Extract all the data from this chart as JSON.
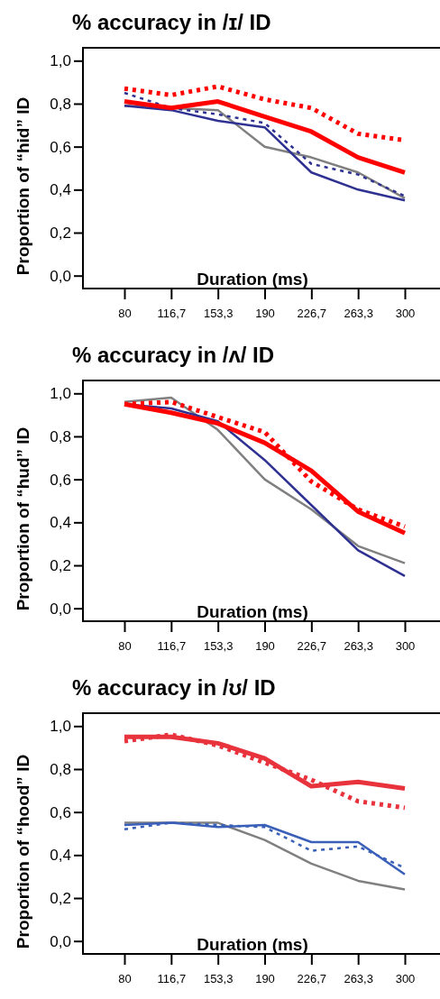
{
  "chart_data": [
    {
      "type": "line",
      "title": "% accuracy in /ɪ/ ID",
      "xlabel": "Duration (ms)",
      "ylabel": "Proportion of “hid” ID",
      "categories": [
        "80",
        "116,7",
        "153,3",
        "190",
        "226,7",
        "263,3",
        "300"
      ],
      "ylim": [
        -0.06,
        1.06
      ],
      "yticks": [
        {
          "value": 0,
          "label": "0,0"
        },
        {
          "value": 0.2,
          "label": "0,2"
        },
        {
          "value": 0.4,
          "label": "0,4"
        },
        {
          "value": 0.6,
          "label": "0,6"
        },
        {
          "value": 0.8,
          "label": "0,8"
        },
        {
          "value": 1,
          "label": "1,0"
        }
      ],
      "grid": false,
      "series": [
        {
          "color": "#ff0000",
          "line_style": "solid",
          "values": [
            0.81,
            0.78,
            0.81,
            0.74,
            0.67,
            0.55,
            0.48
          ]
        },
        {
          "color": "#ff0000",
          "line_style": "dotted",
          "values": [
            0.87,
            0.84,
            0.88,
            0.82,
            0.78,
            0.66,
            0.63
          ]
        },
        {
          "color": "#2e3192",
          "line_style": "solid",
          "values": [
            0.79,
            0.77,
            0.72,
            0.69,
            0.48,
            0.4,
            0.35
          ]
        },
        {
          "color": "#2e3192",
          "line_style": "dotted",
          "values": [
            0.85,
            0.78,
            0.75,
            0.71,
            0.52,
            0.47,
            0.37
          ]
        },
        {
          "color": "#808080",
          "line_style": "solid",
          "values": [
            0.79,
            0.78,
            0.77,
            0.6,
            0.55,
            0.48,
            0.36
          ]
        }
      ]
    },
    {
      "type": "line",
      "title": "% accuracy in /ʌ/ ID",
      "xlabel": "Duration (ms)",
      "ylabel": "Proportion of “hud” ID",
      "categories": [
        "80",
        "116,7",
        "153,3",
        "190",
        "226,7",
        "263,3",
        "300"
      ],
      "ylim": [
        -0.06,
        1.06
      ],
      "yticks": [
        {
          "value": 0,
          "label": "0,0"
        },
        {
          "value": 0.2,
          "label": "0,2"
        },
        {
          "value": 0.4,
          "label": "0,4"
        },
        {
          "value": 0.6,
          "label": "0,6"
        },
        {
          "value": 0.8,
          "label": "0,8"
        },
        {
          "value": 1,
          "label": "1,0"
        }
      ],
      "grid": false,
      "series": [
        {
          "color": "#ff0000",
          "line_style": "solid",
          "values": [
            0.95,
            0.91,
            0.86,
            0.77,
            0.64,
            0.45,
            0.35
          ]
        },
        {
          "color": "#ff0000",
          "line_style": "dotted",
          "values": [
            0.95,
            0.96,
            0.89,
            0.82,
            0.59,
            0.46,
            0.38
          ]
        },
        {
          "color": "#2e3192",
          "line_style": "solid",
          "values": [
            0.95,
            0.93,
            0.87,
            0.69,
            0.48,
            0.27,
            0.15
          ]
        },
        {
          "color": "#808080",
          "line_style": "solid",
          "values": [
            0.96,
            0.98,
            0.83,
            0.6,
            0.46,
            0.29,
            0.21
          ]
        }
      ]
    },
    {
      "type": "line",
      "title": "% accuracy in /ʊ/ ID",
      "xlabel": "Duration (ms)",
      "ylabel": "Proportion of “hood” ID",
      "categories": [
        "80",
        "116,7",
        "153,3",
        "190",
        "226,7",
        "263,3",
        "300"
      ],
      "ylim": [
        -0.06,
        1.06
      ],
      "yticks": [
        {
          "value": 0,
          "label": "0,0"
        },
        {
          "value": 0.2,
          "label": "0,2"
        },
        {
          "value": 0.4,
          "label": "0,4"
        },
        {
          "value": 0.6,
          "label": "0,6"
        },
        {
          "value": 0.8,
          "label": "0,8"
        },
        {
          "value": 1,
          "label": "1,0"
        }
      ],
      "grid": false,
      "series": [
        {
          "color": "#e8323c",
          "line_style": "solid",
          "values": [
            0.95,
            0.95,
            0.92,
            0.85,
            0.72,
            0.74,
            0.71
          ]
        },
        {
          "color": "#e8323c",
          "line_style": "dotted",
          "values": [
            0.93,
            0.96,
            0.91,
            0.83,
            0.75,
            0.65,
            0.62
          ]
        },
        {
          "color": "#3a5fb8",
          "line_style": "solid",
          "values": [
            0.54,
            0.55,
            0.53,
            0.54,
            0.46,
            0.46,
            0.31
          ]
        },
        {
          "color": "#3a5fb8",
          "line_style": "dotted",
          "values": [
            0.52,
            0.55,
            0.54,
            0.53,
            0.42,
            0.44,
            0.34
          ]
        },
        {
          "color": "#808080",
          "line_style": "solid",
          "values": [
            0.55,
            0.55,
            0.55,
            0.47,
            0.36,
            0.28,
            0.24
          ]
        }
      ]
    }
  ]
}
